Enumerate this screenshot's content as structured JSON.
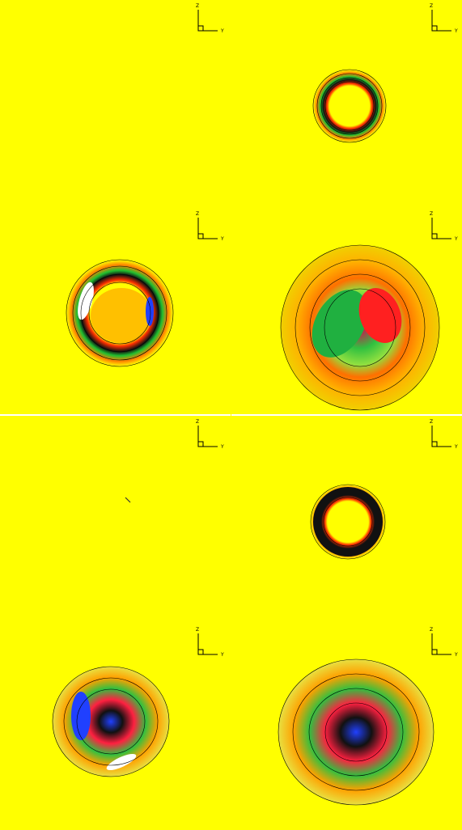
{
  "panels": [
    {
      "z_label": "Z",
      "y_label": "Y"
    },
    {
      "z_label": "Z",
      "y_label": "Y"
    },
    {
      "z_label": "Z",
      "y_label": "Y"
    },
    {
      "z_label": "Z",
      "y_label": "Y"
    },
    {
      "z_label": "Z",
      "y_label": "Y"
    },
    {
      "z_label": "Z",
      "y_label": "Y"
    },
    {
      "z_label": "Z",
      "y_label": "Y"
    },
    {
      "z_label": "Z",
      "y_label": "Y"
    }
  ]
}
